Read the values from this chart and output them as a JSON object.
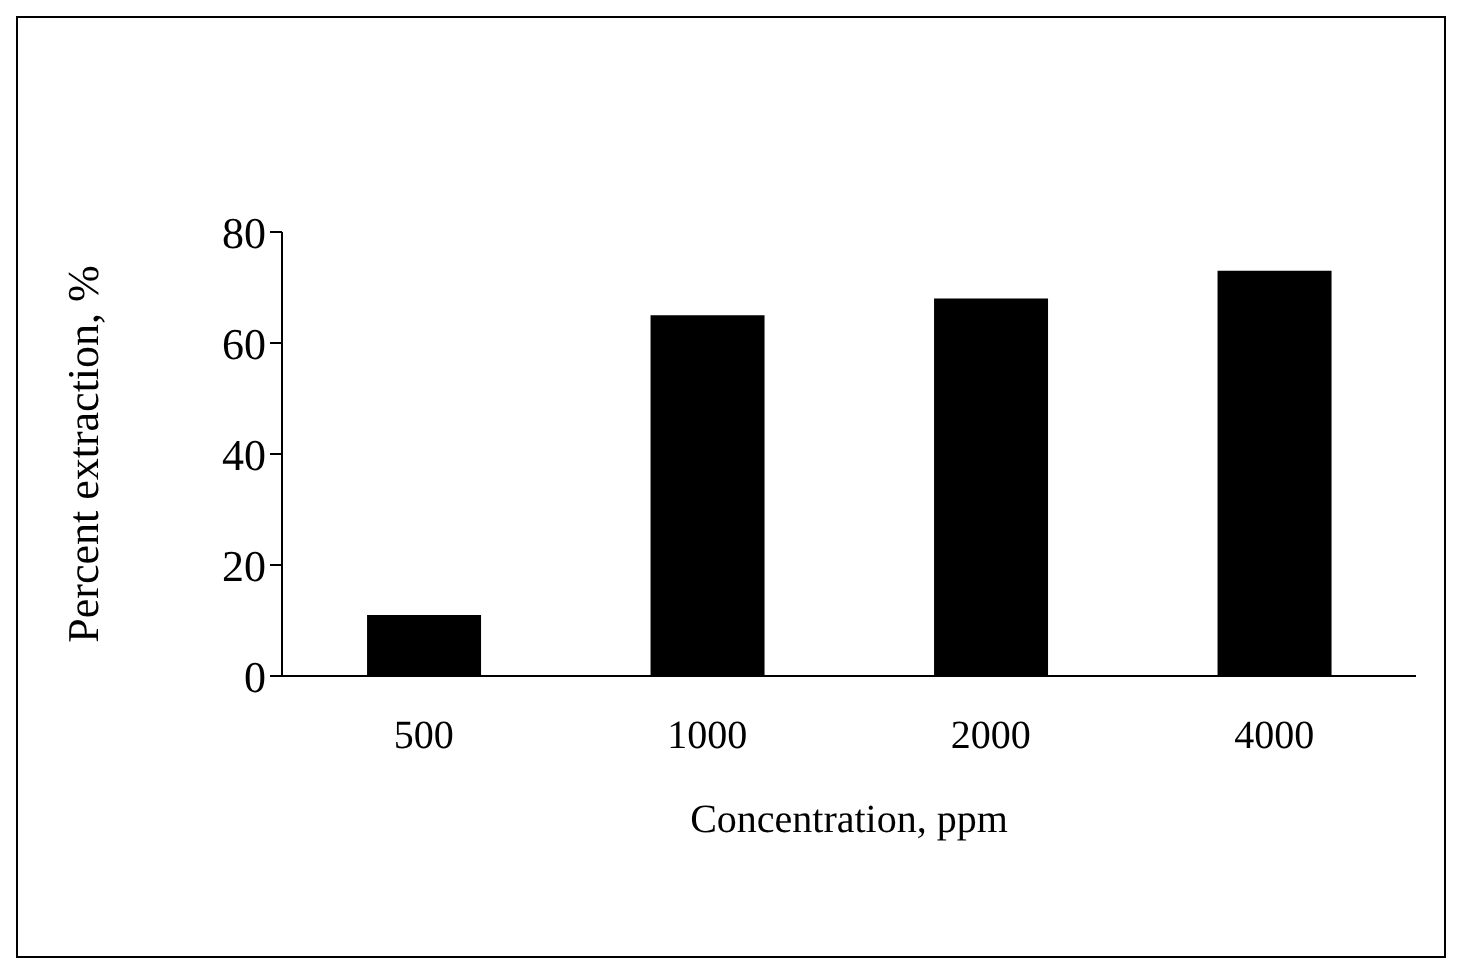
{
  "chart_data": {
    "type": "bar",
    "xlabel": "Concentration, ppm",
    "ylabel": "Percent extraction, %",
    "categories": [
      "500",
      "1000",
      "2000",
      "4000"
    ],
    "values": [
      11,
      65,
      68,
      73
    ],
    "color": "#000000",
    "ylim": [
      0,
      80
    ],
    "yticks": [
      0,
      20,
      40,
      60,
      80
    ],
    "grid": false,
    "legend": false
  }
}
